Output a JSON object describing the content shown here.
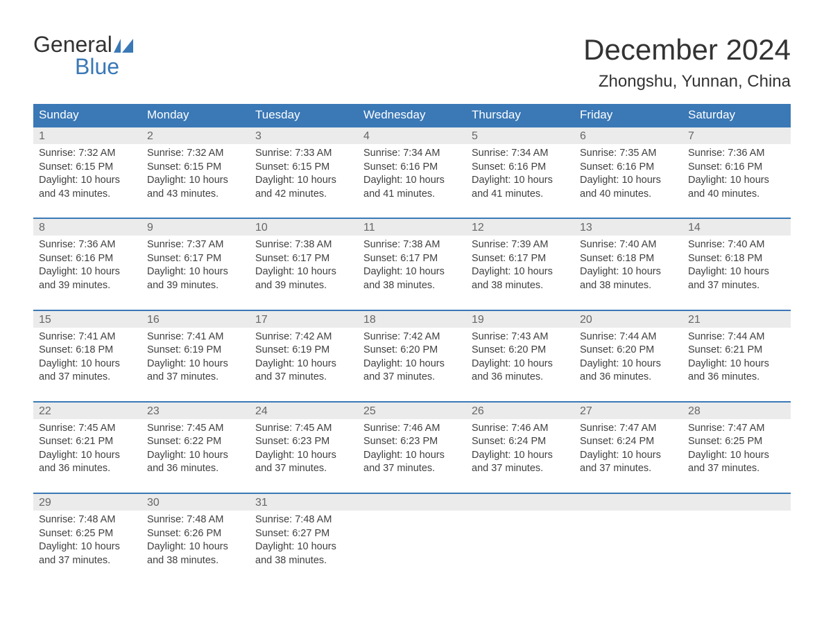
{
  "logo": {
    "line1": "General",
    "line2": "Blue",
    "flag_color": "#3a78b6"
  },
  "header": {
    "month_title": "December 2024",
    "location": "Zhongshu, Yunnan, China"
  },
  "calendar": {
    "header_bg": "#3a78b6",
    "header_text_color": "#ffffff",
    "week_border_color": "#3a78b6",
    "daynum_bg": "#ebebeb",
    "daynum_color": "#666666",
    "body_text_color": "#404040",
    "weekdays": [
      "Sunday",
      "Monday",
      "Tuesday",
      "Wednesday",
      "Thursday",
      "Friday",
      "Saturday"
    ],
    "label_sunrise": "Sunrise: ",
    "label_sunset": "Sunset: ",
    "label_daylight_prefix": "Daylight: ",
    "label_daylight_middle": " hours and ",
    "label_daylight_suffix": " minutes.",
    "weeks": [
      [
        {
          "daynum": "1",
          "sunrise": "7:32 AM",
          "sunset": "6:15 PM",
          "dh": "10",
          "dm": "43"
        },
        {
          "daynum": "2",
          "sunrise": "7:32 AM",
          "sunset": "6:15 PM",
          "dh": "10",
          "dm": "43"
        },
        {
          "daynum": "3",
          "sunrise": "7:33 AM",
          "sunset": "6:15 PM",
          "dh": "10",
          "dm": "42"
        },
        {
          "daynum": "4",
          "sunrise": "7:34 AM",
          "sunset": "6:16 PM",
          "dh": "10",
          "dm": "41"
        },
        {
          "daynum": "5",
          "sunrise": "7:34 AM",
          "sunset": "6:16 PM",
          "dh": "10",
          "dm": "41"
        },
        {
          "daynum": "6",
          "sunrise": "7:35 AM",
          "sunset": "6:16 PM",
          "dh": "10",
          "dm": "40"
        },
        {
          "daynum": "7",
          "sunrise": "7:36 AM",
          "sunset": "6:16 PM",
          "dh": "10",
          "dm": "40"
        }
      ],
      [
        {
          "daynum": "8",
          "sunrise": "7:36 AM",
          "sunset": "6:16 PM",
          "dh": "10",
          "dm": "39"
        },
        {
          "daynum": "9",
          "sunrise": "7:37 AM",
          "sunset": "6:17 PM",
          "dh": "10",
          "dm": "39"
        },
        {
          "daynum": "10",
          "sunrise": "7:38 AM",
          "sunset": "6:17 PM",
          "dh": "10",
          "dm": "39"
        },
        {
          "daynum": "11",
          "sunrise": "7:38 AM",
          "sunset": "6:17 PM",
          "dh": "10",
          "dm": "38"
        },
        {
          "daynum": "12",
          "sunrise": "7:39 AM",
          "sunset": "6:17 PM",
          "dh": "10",
          "dm": "38"
        },
        {
          "daynum": "13",
          "sunrise": "7:40 AM",
          "sunset": "6:18 PM",
          "dh": "10",
          "dm": "38"
        },
        {
          "daynum": "14",
          "sunrise": "7:40 AM",
          "sunset": "6:18 PM",
          "dh": "10",
          "dm": "37"
        }
      ],
      [
        {
          "daynum": "15",
          "sunrise": "7:41 AM",
          "sunset": "6:18 PM",
          "dh": "10",
          "dm": "37"
        },
        {
          "daynum": "16",
          "sunrise": "7:41 AM",
          "sunset": "6:19 PM",
          "dh": "10",
          "dm": "37"
        },
        {
          "daynum": "17",
          "sunrise": "7:42 AM",
          "sunset": "6:19 PM",
          "dh": "10",
          "dm": "37"
        },
        {
          "daynum": "18",
          "sunrise": "7:42 AM",
          "sunset": "6:20 PM",
          "dh": "10",
          "dm": "37"
        },
        {
          "daynum": "19",
          "sunrise": "7:43 AM",
          "sunset": "6:20 PM",
          "dh": "10",
          "dm": "36"
        },
        {
          "daynum": "20",
          "sunrise": "7:44 AM",
          "sunset": "6:20 PM",
          "dh": "10",
          "dm": "36"
        },
        {
          "daynum": "21",
          "sunrise": "7:44 AM",
          "sunset": "6:21 PM",
          "dh": "10",
          "dm": "36"
        }
      ],
      [
        {
          "daynum": "22",
          "sunrise": "7:45 AM",
          "sunset": "6:21 PM",
          "dh": "10",
          "dm": "36"
        },
        {
          "daynum": "23",
          "sunrise": "7:45 AM",
          "sunset": "6:22 PM",
          "dh": "10",
          "dm": "36"
        },
        {
          "daynum": "24",
          "sunrise": "7:45 AM",
          "sunset": "6:23 PM",
          "dh": "10",
          "dm": "37"
        },
        {
          "daynum": "25",
          "sunrise": "7:46 AM",
          "sunset": "6:23 PM",
          "dh": "10",
          "dm": "37"
        },
        {
          "daynum": "26",
          "sunrise": "7:46 AM",
          "sunset": "6:24 PM",
          "dh": "10",
          "dm": "37"
        },
        {
          "daynum": "27",
          "sunrise": "7:47 AM",
          "sunset": "6:24 PM",
          "dh": "10",
          "dm": "37"
        },
        {
          "daynum": "28",
          "sunrise": "7:47 AM",
          "sunset": "6:25 PM",
          "dh": "10",
          "dm": "37"
        }
      ],
      [
        {
          "daynum": "29",
          "sunrise": "7:48 AM",
          "sunset": "6:25 PM",
          "dh": "10",
          "dm": "37"
        },
        {
          "daynum": "30",
          "sunrise": "7:48 AM",
          "sunset": "6:26 PM",
          "dh": "10",
          "dm": "38"
        },
        {
          "daynum": "31",
          "sunrise": "7:48 AM",
          "sunset": "6:27 PM",
          "dh": "10",
          "dm": "38"
        },
        {
          "empty": true
        },
        {
          "empty": true
        },
        {
          "empty": true
        },
        {
          "empty": true
        }
      ]
    ]
  }
}
